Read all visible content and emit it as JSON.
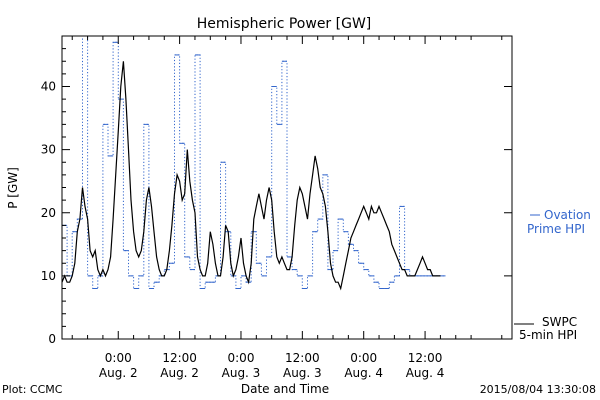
{
  "chart_data": {
    "type": "line",
    "title": "Hemispheric Power [GW]",
    "xlabel": "Date and Time",
    "ylabel": "P [GW]",
    "ylim": [
      0,
      48
    ],
    "xlim": [
      -11,
      77
    ],
    "yticks": [
      0,
      10,
      20,
      30,
      40
    ],
    "xticks": [
      {
        "t": 0,
        "time": "0:00",
        "date": "Aug. 2"
      },
      {
        "t": 12,
        "time": "12:00",
        "date": "Aug. 2"
      },
      {
        "t": 24,
        "time": "0:00",
        "date": "Aug. 3"
      },
      {
        "t": 36,
        "time": "12:00",
        "date": "Aug. 3"
      },
      {
        "t": 48,
        "time": "0:00",
        "date": "Aug. 4"
      },
      {
        "t": 60,
        "time": "12:00",
        "date": "Aug. 4"
      }
    ],
    "grid": false,
    "legend_position": "right",
    "footer_left": "Plot: CCMC",
    "footer_right": "2015/08/04 13:30:08",
    "series": [
      {
        "name": "SWPC 5-min HPI",
        "legend_line1": "SWPC",
        "legend_line2": "5-min HPI",
        "color": "#000000",
        "style": "solid",
        "x": [
          -11,
          -10.5,
          -10,
          -9.5,
          -9,
          -8.5,
          -8,
          -7.5,
          -7,
          -6.5,
          -6,
          -5.5,
          -5,
          -4.5,
          -4,
          -3.5,
          -3,
          -2.5,
          -2,
          -1.5,
          -1,
          -0.5,
          0,
          0.5,
          1,
          1.5,
          2,
          2.5,
          3,
          3.5,
          4,
          4.5,
          5,
          5.5,
          6,
          6.5,
          7,
          7.5,
          8,
          8.5,
          9,
          9.5,
          10,
          10.5,
          11,
          11.5,
          12,
          12.5,
          13,
          13.5,
          14,
          14.5,
          15,
          15.5,
          16,
          16.5,
          17,
          17.5,
          18,
          18.5,
          19,
          19.5,
          20,
          20.5,
          21,
          21.5,
          22,
          22.5,
          23,
          23.5,
          24,
          24.5,
          25,
          25.5,
          26,
          26.5,
          27,
          27.5,
          28,
          28.5,
          29,
          29.5,
          30,
          30.5,
          31,
          31.5,
          32,
          32.5,
          33,
          33.5,
          34,
          34.5,
          35,
          35.5,
          36,
          36.5,
          37,
          37.5,
          38,
          38.5,
          39,
          39.5,
          40,
          40.5,
          41,
          41.5,
          42,
          42.5,
          43,
          43.5,
          44,
          44.5,
          45,
          45.5,
          46,
          46.5,
          47,
          47.5,
          48,
          48.5,
          49,
          49.5,
          50,
          50.5,
          51,
          51.5,
          52,
          52.5,
          53,
          53.5,
          54,
          54.5,
          55,
          55.5,
          56,
          56.5,
          57,
          57.5,
          58,
          58.5,
          59,
          59.5,
          60,
          60.5,
          61,
          61.5,
          62,
          62.5,
          63,
          63.5,
          64,
          64.5,
          65,
          65.5,
          66,
          66.5,
          67,
          67.5,
          68,
          68.5,
          69,
          69.5,
          70,
          70.5,
          71,
          71.5,
          72,
          72.5,
          73,
          73.5,
          74,
          74.5,
          75,
          75.5,
          76,
          76.5,
          77
        ],
        "y": [
          9,
          10,
          9,
          9,
          10,
          12,
          17,
          19,
          24,
          21,
          19,
          14,
          13,
          14,
          11,
          10,
          11,
          10,
          11,
          13,
          19,
          26,
          33,
          40,
          44,
          38,
          30,
          22,
          17,
          14,
          13,
          14,
          17,
          22,
          24,
          21,
          17,
          13,
          11,
          10,
          10,
          11,
          14,
          18,
          23,
          26,
          25,
          22,
          23,
          30,
          25,
          22,
          20,
          13,
          11,
          10,
          10,
          12,
          17,
          15,
          12,
          10,
          10,
          13,
          18,
          17,
          12,
          10,
          11,
          13,
          16,
          12,
          10,
          9,
          12,
          19,
          21,
          23,
          21,
          19,
          22,
          24,
          22,
          17,
          13,
          12,
          13,
          12,
          11,
          11,
          13,
          18,
          22,
          24,
          23,
          21,
          19,
          23,
          26,
          29,
          27,
          24,
          23,
          21,
          17,
          12,
          10,
          9,
          9,
          8,
          10,
          12,
          14,
          16,
          17,
          18,
          19,
          20,
          21,
          20,
          19,
          21,
          20,
          20,
          21,
          20,
          19,
          18,
          17,
          15,
          14,
          13,
          12,
          11,
          11,
          10,
          10,
          10,
          10,
          11,
          12,
          13,
          12,
          11,
          11,
          10,
          10,
          10,
          10,
          10,
          10,
          10,
          10,
          10,
          10,
          10,
          10,
          10,
          10,
          10,
          10,
          10,
          10,
          10,
          10,
          10,
          10,
          10,
          10,
          10,
          10,
          10,
          10,
          10,
          10,
          10,
          10
        ]
      },
      {
        "name": "Ovation Prime HPI",
        "legend_line1": "Ovation",
        "legend_line2": "Prime HPI",
        "color": "#3366cc",
        "style": "step-dotted",
        "x": [
          -11,
          -10,
          -9,
          -8,
          -7,
          -6,
          -5,
          -4,
          -3,
          -2,
          -1,
          0,
          1,
          2,
          3,
          4,
          5,
          6,
          7,
          8,
          9,
          10,
          11,
          12,
          13,
          14,
          15,
          16,
          17,
          18,
          19,
          20,
          21,
          22,
          23,
          24,
          25,
          26,
          27,
          28,
          29,
          30,
          31,
          32,
          33,
          34,
          35,
          36,
          37,
          38,
          39,
          40,
          41,
          42,
          43,
          44,
          45,
          46,
          47,
          48,
          49,
          50,
          51,
          52,
          53,
          54,
          55,
          56,
          57,
          58,
          59,
          60,
          61,
          62,
          63
        ],
        "y": [
          18,
          10,
          17,
          19,
          48,
          10,
          8,
          10,
          34,
          29,
          47,
          38,
          14,
          10,
          8,
          10,
          34,
          8,
          9,
          10,
          11,
          12,
          45,
          31,
          13,
          11,
          45,
          8,
          9,
          9,
          10,
          28,
          17,
          10,
          8,
          10,
          9,
          17,
          12,
          10,
          13,
          40,
          34,
          44,
          13,
          11,
          10,
          8,
          10,
          17,
          19,
          26,
          11,
          14,
          19,
          17,
          15,
          14,
          12,
          11,
          10,
          9,
          8,
          8,
          9,
          10,
          21,
          11,
          10,
          10,
          10,
          10,
          10,
          10,
          10
        ]
      }
    ]
  }
}
